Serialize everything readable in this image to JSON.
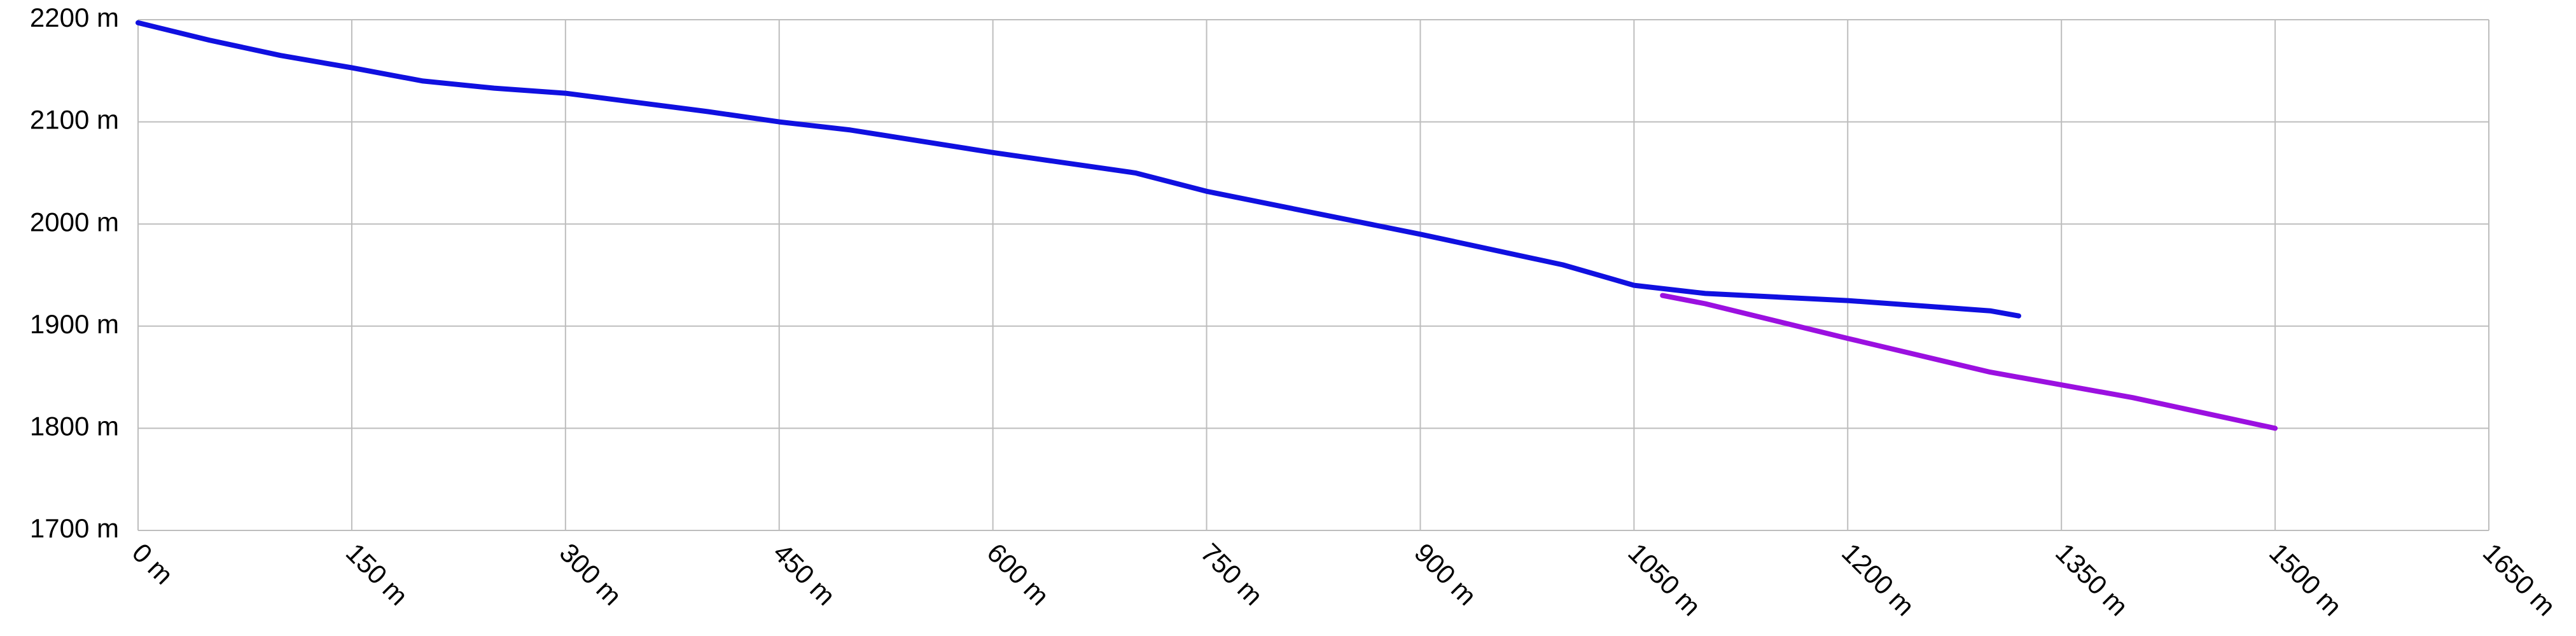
{
  "chart_data": {
    "type": "line",
    "xlim": [
      0,
      1650
    ],
    "xticks": [
      {
        "value": 0,
        "label": "0 m"
      },
      {
        "value": 150,
        "label": "150 m"
      },
      {
        "value": 300,
        "label": "300 m"
      },
      {
        "value": 450,
        "label": "450 m"
      },
      {
        "value": 600,
        "label": "600 m"
      },
      {
        "value": 750,
        "label": "750 m"
      },
      {
        "value": 900,
        "label": "900 m"
      },
      {
        "value": 1050,
        "label": "1050 m"
      },
      {
        "value": 1200,
        "label": "1200 m"
      },
      {
        "value": 1350,
        "label": "1350 m"
      },
      {
        "value": 1500,
        "label": "1500 m"
      },
      {
        "value": 1650,
        "label": "1650 m"
      }
    ],
    "ylim": [
      1700,
      2200
    ],
    "yticks": [
      {
        "value": 1700,
        "label": "1700 m"
      },
      {
        "value": 1800,
        "label": "1800 m"
      },
      {
        "value": 1900,
        "label": "1900 m"
      },
      {
        "value": 2000,
        "label": "2000 m"
      },
      {
        "value": 2100,
        "label": "2100 m"
      },
      {
        "value": 2200,
        "label": "2200 m"
      }
    ],
    "grid": true,
    "series": [
      {
        "color": "#1010e0",
        "x": [
          0,
          50,
          100,
          150,
          200,
          250,
          300,
          400,
          450,
          500,
          600,
          700,
          750,
          800,
          900,
          1000,
          1050,
          1100,
          1200,
          1300,
          1320
        ],
        "values": [
          2197,
          2180,
          2165,
          2153,
          2140,
          2133,
          2128,
          2110,
          2100,
          2092,
          2070,
          2050,
          2032,
          2018,
          1990,
          1960,
          1940,
          1932,
          1925,
          1915,
          1910
        ]
      },
      {
        "color": "#9b10e0",
        "x": [
          1070,
          1100,
          1200,
          1300,
          1400,
          1500
        ],
        "values": [
          1930,
          1922,
          1888,
          1855,
          1830,
          1800
        ]
      }
    ]
  }
}
